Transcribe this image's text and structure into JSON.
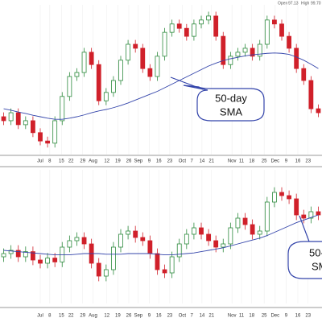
{
  "chart_data": [
    {
      "type": "candlestick",
      "quote": [
        "Open",
        "97.13",
        "High",
        "99.70"
      ],
      "annotation": [
        "50-day",
        "SMA"
      ],
      "up_color": "#2e8b3e",
      "down_color": "#d0202a",
      "x": [
        0,
        1,
        2,
        3,
        4,
        5,
        6,
        7,
        8,
        9,
        10,
        11,
        12,
        13,
        14,
        15,
        16,
        17,
        18,
        19,
        20,
        21,
        22,
        23,
        24,
        25,
        26,
        27,
        28,
        29,
        30,
        31,
        32,
        33,
        34,
        35,
        36,
        37,
        38,
        39,
        40,
        41,
        42,
        43
      ],
      "open": [
        70.0,
        68.9,
        71.1,
        67.8,
        68.9,
        65.6,
        63.3,
        62.7,
        68.9,
        75.6,
        81.1,
        82.2,
        87.8,
        84.4,
        74.4,
        76.7,
        80.0,
        85.6,
        90.0,
        88.9,
        83.3,
        81.1,
        86.7,
        93.3,
        95.6,
        94.4,
        92.2,
        95.6,
        96.7,
        97.8,
        92.2,
        84.4,
        86.7,
        87.8,
        88.9,
        86.7,
        90.0,
        96.7,
        95.6,
        92.2,
        88.9,
        83.3,
        80.0,
        72.2
      ],
      "high": [
        71.2,
        72.3,
        72.3,
        70.1,
        70.1,
        66.8,
        64.5,
        70.1,
        76.8,
        82.3,
        83.4,
        89.0,
        89.0,
        85.6,
        77.9,
        81.2,
        86.8,
        91.2,
        91.2,
        90.1,
        84.5,
        87.9,
        94.5,
        96.8,
        96.8,
        95.6,
        96.8,
        97.9,
        99.0,
        99.0,
        93.4,
        87.9,
        89.0,
        90.1,
        90.1,
        91.2,
        97.9,
        97.9,
        96.8,
        93.4,
        90.1,
        84.5,
        81.2,
        73.4
      ],
      "low": [
        67.7,
        67.7,
        66.6,
        66.6,
        64.4,
        62.1,
        61.5,
        61.5,
        67.7,
        74.4,
        79.9,
        81.0,
        83.2,
        73.2,
        73.2,
        75.5,
        78.8,
        84.4,
        87.7,
        82.1,
        79.9,
        79.9,
        85.5,
        92.1,
        93.2,
        91.0,
        91.0,
        94.4,
        95.5,
        91.0,
        83.2,
        83.2,
        85.5,
        86.6,
        85.5,
        85.5,
        88.8,
        94.4,
        91.0,
        87.7,
        82.1,
        78.8,
        71.0,
        69.9
      ],
      "close": [
        68.9,
        71.1,
        67.8,
        68.9,
        65.6,
        63.3,
        62.7,
        68.9,
        75.6,
        81.1,
        82.2,
        87.8,
        84.4,
        74.4,
        76.7,
        80.0,
        85.6,
        90.0,
        88.9,
        83.3,
        81.1,
        86.7,
        93.3,
        95.6,
        94.4,
        92.2,
        95.6,
        96.7,
        97.8,
        92.2,
        84.4,
        86.7,
        87.8,
        88.9,
        86.7,
        90.0,
        96.7,
        95.6,
        92.2,
        88.9,
        83.3,
        80.0,
        72.2,
        71.1
      ],
      "sma": {
        "color": "#3344aa",
        "values": [
          72.2,
          71.8,
          71.3,
          70.9,
          70.4,
          70.0,
          69.6,
          69.3,
          69.3,
          69.6,
          70.0,
          70.5,
          71.1,
          71.6,
          72.0,
          72.5,
          73.1,
          73.8,
          74.6,
          75.4,
          76.2,
          77.0,
          78.0,
          79.0,
          80.0,
          81.0,
          82.0,
          83.0,
          84.0,
          84.8,
          85.5,
          86.0,
          86.4,
          86.8,
          87.1,
          87.3,
          87.5,
          87.6,
          87.5,
          87.2,
          86.5,
          85.6,
          84.5,
          83.3
        ]
      },
      "xlim": [
        -0.5,
        43.5
      ],
      "ylim": [
        60,
        100
      ],
      "xticks": [
        {
          "value": 5.0,
          "label": "Jul"
        },
        {
          "value": 6.3,
          "label": "8"
        },
        {
          "value": 7.9,
          "label": "15"
        },
        {
          "value": 9.2,
          "label": "22"
        },
        {
          "value": 10.8,
          "label": "29"
        },
        {
          "value": 12.2,
          "label": "Aug"
        },
        {
          "value": 14.1,
          "label": "12"
        },
        {
          "value": 15.6,
          "label": "19"
        },
        {
          "value": 17.1,
          "label": "26"
        },
        {
          "value": 18.4,
          "label": "Sep"
        },
        {
          "value": 19.9,
          "label": "9"
        },
        {
          "value": 21.2,
          "label": "16"
        },
        {
          "value": 22.7,
          "label": "23"
        },
        {
          "value": 24.4,
          "label": "Oct"
        },
        {
          "value": 25.7,
          "label": "7"
        },
        {
          "value": 27.1,
          "label": "14"
        },
        {
          "value": 28.4,
          "label": "21"
        },
        {
          "value": 31.2,
          "label": "Nov"
        },
        {
          "value": 32.5,
          "label": "11"
        },
        {
          "value": 33.9,
          "label": "18"
        },
        {
          "value": 35.6,
          "label": "25"
        },
        {
          "value": 37.1,
          "label": "Dec"
        },
        {
          "value": 38.6,
          "label": "9"
        },
        {
          "value": 40.2,
          "label": "16"
        },
        {
          "value": 41.6,
          "label": "23"
        }
      ]
    },
    {
      "type": "candlestick",
      "annotation": [
        "50-",
        "SM"
      ],
      "up_color": "#2e8b3e",
      "down_color": "#d0202a",
      "x": [
        0,
        1,
        2,
        3,
        4,
        5,
        6,
        7,
        8,
        9,
        10,
        11,
        12,
        13,
        14,
        15,
        16,
        17,
        18,
        19,
        20,
        21,
        22,
        23,
        24,
        25,
        26,
        27,
        28,
        29,
        30,
        31,
        32,
        33,
        34,
        35,
        36,
        37,
        38,
        39,
        40,
        41,
        42,
        43
      ],
      "open": [
        47.0,
        47.5,
        48.0,
        47.0,
        47.8,
        46.5,
        46.0,
        46.8,
        46.2,
        48.5,
        49.5,
        50.0,
        49.0,
        46.0,
        44.0,
        45.0,
        48.5,
        50.5,
        51.0,
        50.0,
        49.5,
        47.5,
        45.0,
        44.5,
        47.0,
        49.0,
        50.5,
        51.5,
        50.5,
        49.5,
        48.5,
        49.0,
        51.5,
        53.0,
        52.0,
        50.5,
        51.0,
        55.5,
        57.0,
        56.5,
        56.0,
        53.5,
        53.0,
        54.0
      ],
      "high": [
        48.3,
        48.8,
        48.8,
        48.6,
        48.6,
        47.3,
        47.6,
        47.6,
        49.3,
        50.3,
        50.8,
        50.8,
        49.8,
        46.8,
        45.8,
        49.3,
        51.3,
        51.8,
        51.8,
        50.8,
        50.3,
        48.3,
        45.8,
        47.8,
        49.8,
        51.3,
        52.3,
        52.3,
        51.3,
        50.3,
        49.8,
        52.3,
        53.8,
        53.8,
        52.8,
        51.8,
        56.3,
        57.8,
        57.8,
        57.3,
        56.8,
        54.3,
        54.8,
        54.8
      ],
      "low": [
        46.2,
        46.7,
        46.2,
        46.2,
        45.7,
        45.2,
        45.2,
        45.4,
        45.4,
        47.7,
        48.7,
        48.2,
        45.2,
        43.2,
        43.2,
        44.2,
        47.7,
        49.7,
        49.2,
        48.7,
        46.7,
        44.2,
        43.7,
        43.7,
        46.2,
        48.2,
        49.7,
        49.7,
        48.7,
        47.7,
        47.7,
        48.2,
        50.7,
        51.2,
        49.7,
        49.7,
        50.2,
        54.7,
        55.7,
        55.2,
        52.7,
        52.2,
        52.2,
        52.7
      ],
      "close": [
        47.5,
        48.0,
        47.0,
        47.8,
        46.5,
        46.0,
        46.8,
        46.2,
        48.5,
        49.5,
        50.0,
        49.0,
        46.0,
        44.0,
        45.0,
        48.5,
        50.5,
        51.0,
        50.0,
        49.5,
        47.5,
        45.0,
        44.5,
        47.0,
        49.0,
        50.5,
        51.5,
        50.5,
        49.5,
        48.5,
        49.0,
        51.5,
        53.0,
        52.0,
        50.5,
        51.0,
        55.5,
        57.0,
        56.5,
        56.0,
        53.5,
        53.0,
        54.0,
        53.5
      ],
      "sma": {
        "color": "#3344aa",
        "values": [
          48.0,
          47.9,
          47.8,
          47.7,
          47.6,
          47.5,
          47.4,
          47.3,
          47.3,
          47.3,
          47.4,
          47.5,
          47.5,
          47.5,
          47.4,
          47.4,
          47.4,
          47.5,
          47.5,
          47.5,
          47.5,
          47.4,
          47.3,
          47.3,
          47.4,
          47.5,
          47.6,
          47.8,
          48.0,
          48.2,
          48.4,
          48.7,
          49.0,
          49.3,
          49.6,
          49.9,
          50.3,
          50.8,
          51.3,
          51.8,
          52.3,
          52.7,
          53.1,
          53.5
        ]
      },
      "xlim": [
        -0.5,
        43.5
      ],
      "ylim": [
        40,
        60
      ],
      "xticks": [
        {
          "value": 5.0,
          "label": "Jul"
        },
        {
          "value": 6.3,
          "label": "8"
        },
        {
          "value": 7.9,
          "label": "15"
        },
        {
          "value": 9.2,
          "label": "22"
        },
        {
          "value": 10.8,
          "label": "29"
        },
        {
          "value": 12.2,
          "label": "Aug"
        },
        {
          "value": 14.1,
          "label": "12"
        },
        {
          "value": 15.6,
          "label": "19"
        },
        {
          "value": 17.1,
          "label": "26"
        },
        {
          "value": 18.4,
          "label": "Sep"
        },
        {
          "value": 19.9,
          "label": "9"
        },
        {
          "value": 21.2,
          "label": "16"
        },
        {
          "value": 22.7,
          "label": "23"
        },
        {
          "value": 24.4,
          "label": "Oct"
        },
        {
          "value": 25.7,
          "label": "7"
        },
        {
          "value": 27.1,
          "label": "14"
        },
        {
          "value": 28.4,
          "label": "21"
        },
        {
          "value": 31.2,
          "label": "Nov"
        },
        {
          "value": 32.5,
          "label": "11"
        },
        {
          "value": 33.9,
          "label": "18"
        },
        {
          "value": 35.6,
          "label": "25"
        },
        {
          "value": 37.1,
          "label": "Dec"
        },
        {
          "value": 38.6,
          "label": "9"
        },
        {
          "value": 40.2,
          "label": "16"
        },
        {
          "value": 41.6,
          "label": "23"
        }
      ]
    }
  ]
}
